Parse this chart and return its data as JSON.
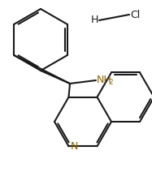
{
  "background_color": "#ffffff",
  "line_color": "#1a1a1a",
  "nitrogen_color": "#8B6508",
  "bond_lw": 1.5,
  "dbo": 0.025,
  "figsize": [
    1.87,
    2.12
  ],
  "dpi": 100,
  "H_label": "H",
  "Cl_label": "Cl",
  "NH2_label": "NH",
  "NH2_sub": "2",
  "N_label": "N",
  "font_size": 9.0,
  "sub_font_size": 6.5
}
